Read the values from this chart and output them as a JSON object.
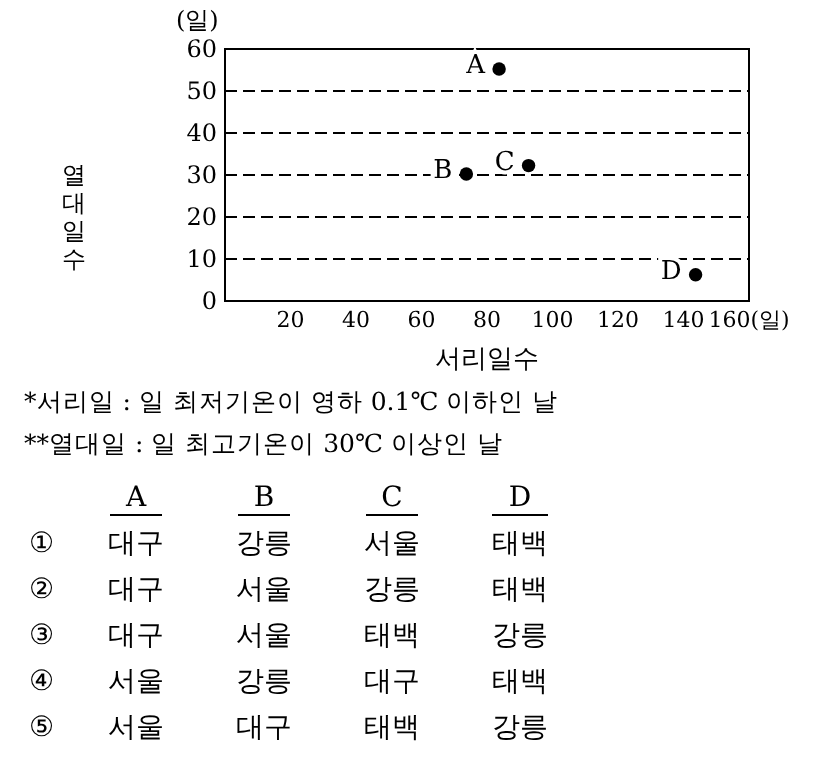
{
  "chart_data": {
    "type": "scatter",
    "xlabel": "서리일수",
    "ylabel": "열대일수",
    "x": [
      84,
      74,
      93,
      144
    ],
    "values": [
      55,
      30,
      32,
      6
    ],
    "color": "#000000",
    "marker": "circle",
    "xlim": [
      0,
      160
    ],
    "xticks": [
      20,
      40,
      60,
      80,
      100,
      120,
      140,
      {
        "value": 160,
        "label": "160(일)"
      }
    ],
    "ylim": [
      0,
      60
    ],
    "yticks": [
      0,
      10,
      20,
      30,
      40,
      50,
      60
    ],
    "grid": "y",
    "annotations": [
      {
        "text": "A",
        "x": 84,
        "y": 55
      },
      {
        "text": "B",
        "x": 74,
        "y": 30
      },
      {
        "text": "C",
        "x": 93,
        "y": 32
      },
      {
        "text": "D",
        "x": 144,
        "y": 6
      },
      "(일)",
      "*서리일 : 일 최저기온이 영하 0.1℃ 이하인 날",
      "**열대일 : 일 최고기온이 30℃ 이상인 날",
      "A B C D",
      "① 대구 강릉 서울 태백",
      "② 대구 서울 강릉 태백",
      "③ 대구 서울 태백 강릉",
      "④ 서울 강릉 대구 태백",
      "⑤ 서울 대구 태백 강릉"
    ]
  }
}
